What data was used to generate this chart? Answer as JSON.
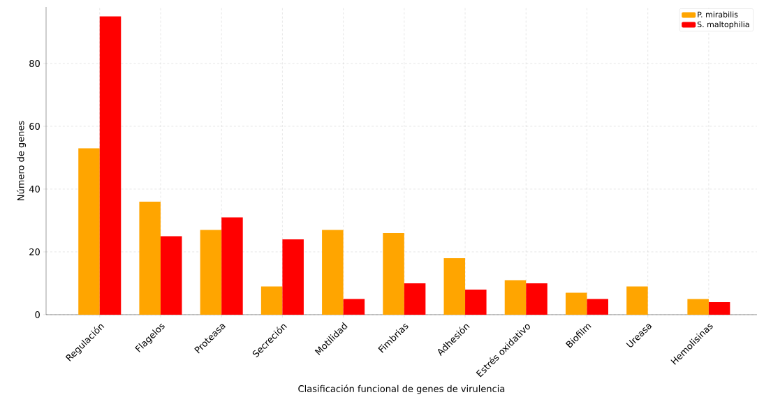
{
  "chart_data": {
    "type": "bar",
    "xlabel": "Clasificación funcional de genes de virulencia",
    "ylabel": "Número de genes",
    "categories": [
      "Regulación",
      "Flagelos",
      "Proteasa",
      "Secreción",
      "Motilidad",
      "Fimbrias",
      "Adhesión",
      "Estrés oxidativo",
      "Biofilm",
      "Ureasa",
      "Hemolisinas"
    ],
    "series": [
      {
        "name": "P. mirabilis",
        "color": "#ffa500",
        "values": [
          53,
          36,
          27,
          9,
          27,
          26,
          18,
          11,
          7,
          9,
          5
        ]
      },
      {
        "name": "S. maltophilia",
        "color": "#ff0000",
        "values": [
          95,
          25,
          31,
          24,
          5,
          10,
          8,
          10,
          5,
          0,
          4
        ]
      }
    ],
    "ylim": [
      0,
      98
    ],
    "yticks": [
      0,
      20,
      40,
      60,
      80
    ],
    "grid": true,
    "legend": "top right"
  }
}
